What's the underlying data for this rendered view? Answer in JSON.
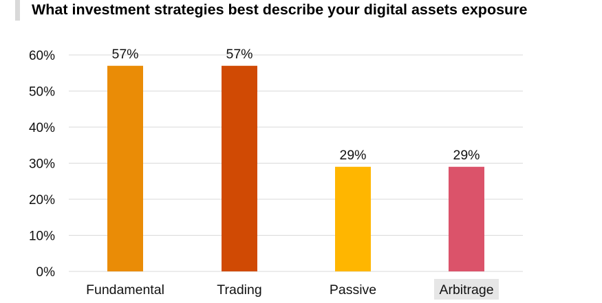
{
  "chart_data": {
    "type": "bar",
    "title": "What investment strategies best describe your digital assets exposure",
    "categories": [
      "Fundamental",
      "Trading",
      "Passive",
      "Arbitrage"
    ],
    "values": [
      57,
      57,
      29,
      29
    ],
    "data_labels": [
      "57%",
      "57%",
      "29%",
      "29%"
    ],
    "bar_colors": [
      "#ea8c06",
      "#d04a04",
      "#ffb600",
      "#db536a"
    ],
    "yticks": [
      "0%",
      "10%",
      "20%",
      "30%",
      "40%",
      "50%",
      "60%"
    ],
    "ytick_values": [
      0,
      10,
      20,
      30,
      40,
      50,
      60
    ],
    "ylim": [
      0,
      60
    ],
    "xlabel": "",
    "ylabel": "",
    "grid": true,
    "legend": "none"
  },
  "colors": {
    "title_accent_bar": "#d9d9d9",
    "gridline": "#d9d9d9",
    "category_highlight": "#e6e6e6"
  }
}
